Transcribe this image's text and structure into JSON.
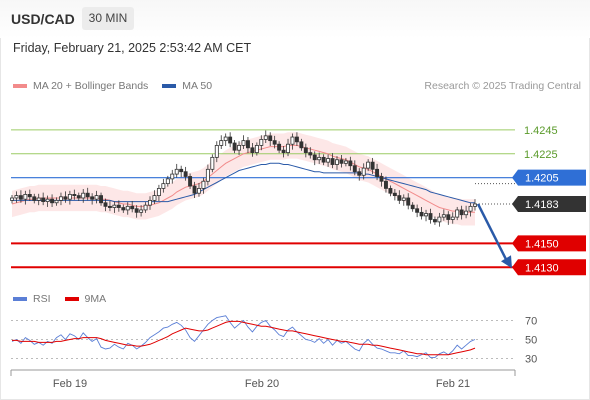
{
  "header": {
    "symbol": "USD/CAD",
    "timeframe": "30 MIN",
    "datetime": "Friday, February 21, 2025 2:53:42 AM CET"
  },
  "legend": {
    "ma20_label": "MA 20 + Bollinger Bands",
    "ma20_color": "#f28b8b",
    "ma50_label": "MA 50",
    "ma50_color": "#2a5aa8",
    "credit": "Research © 2025 Trading Central"
  },
  "rsi_legend": {
    "rsi_label": "RSI",
    "rsi_color": "#5b7fd6",
    "ma_label": "9MA",
    "ma_color": "#e00000"
  },
  "chart_data": {
    "type": "candlestick",
    "x_ticks": [
      "Feb 19",
      "Feb 20",
      "Feb 21"
    ],
    "ylim": [
      1.4111,
      1.427
    ],
    "levels": [
      {
        "value": 1.4245,
        "label": "1.4245",
        "style": "resistance",
        "color": "#9ccc65"
      },
      {
        "value": 1.4225,
        "label": "1.4225",
        "style": "resistance",
        "color": "#9ccc65"
      },
      {
        "value": 1.4205,
        "label": "1.4205",
        "style": "pivot",
        "color": "#2f6fd6"
      },
      {
        "value": 1.4183,
        "label": "1.4183",
        "style": "current",
        "color": "#333333"
      },
      {
        "value": 1.415,
        "label": "1.4150",
        "style": "support",
        "color": "#e00000"
      },
      {
        "value": 1.413,
        "label": "1.4130",
        "style": "support",
        "color": "#e00000"
      }
    ],
    "forecast_arrow": {
      "from": 1.4183,
      "to": 1.413,
      "color": "#2a5aa8"
    },
    "price": [
      1.4188,
      1.419,
      1.4187,
      1.4191,
      1.4189,
      1.4186,
      1.4188,
      1.4185,
      1.4187,
      1.4184,
      1.4186,
      1.4189,
      1.4187,
      1.4191,
      1.419,
      1.4188,
      1.4192,
      1.4189,
      1.4187,
      1.419,
      1.4184,
      1.4181,
      1.418,
      1.4182,
      1.418,
      1.4178,
      1.4181,
      1.4179,
      1.4176,
      1.4178,
      1.4182,
      1.4186,
      1.419,
      1.4196,
      1.42,
      1.4204,
      1.4208,
      1.4212,
      1.421,
      1.4206,
      1.4198,
      1.4192,
      1.4196,
      1.4202,
      1.4212,
      1.4222,
      1.4232,
      1.4236,
      1.4239,
      1.4234,
      1.4228,
      1.4232,
      1.4236,
      1.423,
      1.4226,
      1.4232,
      1.4237,
      1.424,
      1.4236,
      1.4233,
      1.4228,
      1.4226,
      1.4233,
      1.4239,
      1.4235,
      1.423,
      1.4226,
      1.4224,
      1.422,
      1.4222,
      1.4218,
      1.4221,
      1.4216,
      1.422,
      1.4217,
      1.4219,
      1.4215,
      1.421,
      1.4207,
      1.4213,
      1.4218,
      1.4212,
      1.4206,
      1.4202,
      1.4196,
      1.4192,
      1.419,
      1.4186,
      1.4188,
      1.4182,
      1.4179,
      1.4176,
      1.4173,
      1.4175,
      1.417,
      1.4168,
      1.4172,
      1.4174,
      1.417,
      1.4172,
      1.4178,
      1.4174,
      1.4177,
      1.4181,
      1.4183
    ],
    "ma20": [
      1.4183,
      1.4184,
      1.4185,
      1.4186,
      1.4187,
      1.4187,
      1.4188,
      1.4188,
      1.4188,
      1.4188,
      1.4188,
      1.4188,
      1.4188,
      1.4188,
      1.4188,
      1.4188,
      1.4188,
      1.4188,
      1.4188,
      1.4188,
      1.4187,
      1.4187,
      1.4186,
      1.4185,
      1.4184,
      1.4183,
      1.4183,
      1.4182,
      1.4181,
      1.4181,
      1.4181,
      1.4182,
      1.4183,
      1.4184,
      1.4186,
      1.4188,
      1.419,
      1.4193,
      1.4195,
      1.4197,
      1.4198,
      1.4199,
      1.42,
      1.4202,
      1.4205,
      1.4208,
      1.4211,
      1.4214,
      1.4217,
      1.4219,
      1.4221,
      1.4223,
      1.4225,
      1.4226,
      1.4227,
      1.4228,
      1.4229,
      1.423,
      1.4231,
      1.4231,
      1.4231,
      1.4231,
      1.4232,
      1.4232,
      1.4232,
      1.4231,
      1.423,
      1.4229,
      1.4228,
      1.4227,
      1.4226,
      1.4225,
      1.4223,
      1.4222,
      1.4221,
      1.422,
      1.4218,
      1.4216,
      1.4214,
      1.4213,
      1.4212,
      1.421,
      1.4208,
      1.4206,
      1.4204,
      1.4202,
      1.42,
      1.4198,
      1.4196,
      1.4194,
      1.4192,
      1.419,
      1.4188,
      1.4186,
      1.4184,
      1.4182,
      1.418,
      1.4179,
      1.4178,
      1.4177,
      1.4177,
      1.4176,
      1.4176,
      1.4176,
      1.4176
    ],
    "ma50": [
      1.4186,
      1.4186,
      1.4186,
      1.4186,
      1.4186,
      1.4186,
      1.4186,
      1.4186,
      1.4186,
      1.4186,
      1.4186,
      1.4186,
      1.4186,
      1.4186,
      1.4186,
      1.4186,
      1.4186,
      1.4186,
      1.4186,
      1.4186,
      1.4186,
      1.4186,
      1.4186,
      1.4185,
      1.4185,
      1.4185,
      1.4185,
      1.4185,
      1.4185,
      1.4185,
      1.4185,
      1.4185,
      1.4185,
      1.4185,
      1.4185,
      1.4185,
      1.4186,
      1.4187,
      1.4188,
      1.4189,
      1.419,
      1.4191,
      1.4193,
      1.4195,
      1.4197,
      1.4199,
      1.4201,
      1.4203,
      1.4205,
      1.4207,
      1.4209,
      1.4211,
      1.4212,
      1.4213,
      1.4214,
      1.4215,
      1.4216,
      1.4216,
      1.4217,
      1.4217,
      1.4217,
      1.4216,
      1.4216,
      1.4215,
      1.4214,
      1.4213,
      1.4212,
      1.4211,
      1.421,
      1.421,
      1.4209,
      1.4209,
      1.4209,
      1.4209,
      1.4209,
      1.4209,
      1.4209,
      1.4209,
      1.4209,
      1.4208,
      1.4208,
      1.4207,
      1.4206,
      1.4205,
      1.4204,
      1.4203,
      1.4202,
      1.4201,
      1.42,
      1.4199,
      1.4198,
      1.4197,
      1.4196,
      1.4195,
      1.4193,
      1.4192,
      1.4191,
      1.419,
      1.4189,
      1.4188,
      1.4187,
      1.4186,
      1.4185,
      1.4184,
      1.4184
    ],
    "bb_width": 0.0011,
    "rsi": {
      "ticks": [
        "70",
        "50",
        "30"
      ],
      "ylim": [
        20,
        80
      ],
      "rsi": [
        48,
        50,
        46,
        52,
        49,
        45,
        47,
        44,
        48,
        46,
        52,
        55,
        50,
        56,
        54,
        50,
        57,
        52,
        48,
        51,
        42,
        40,
        41,
        45,
        42,
        40,
        46,
        44,
        40,
        43,
        47,
        52,
        55,
        58,
        62,
        63,
        66,
        68,
        65,
        60,
        52,
        48,
        54,
        60,
        66,
        70,
        73,
        74,
        75,
        68,
        62,
        66,
        70,
        63,
        58,
        64,
        68,
        70,
        64,
        60,
        55,
        53,
        60,
        63,
        58,
        54,
        50,
        49,
        47,
        51,
        46,
        50,
        44,
        49,
        46,
        48,
        44,
        40,
        38,
        46,
        50,
        45,
        41,
        40,
        38,
        36,
        36,
        35,
        38,
        33,
        33,
        32,
        34,
        36,
        31,
        31,
        35,
        37,
        34,
        38,
        44,
        40,
        44,
        48,
        50
      ],
      "ma9": [
        49,
        49,
        48,
        48,
        48,
        48,
        47,
        47,
        47,
        47,
        48,
        48,
        49,
        50,
        51,
        51,
        52,
        52,
        52,
        52,
        51,
        49,
        48,
        47,
        46,
        45,
        44,
        44,
        43,
        43,
        44,
        45,
        47,
        49,
        51,
        53,
        56,
        58,
        60,
        62,
        61,
        60,
        59,
        59,
        60,
        62,
        64,
        66,
        68,
        69,
        69,
        69,
        68,
        67,
        66,
        65,
        64,
        64,
        63,
        62,
        61,
        60,
        59,
        59,
        58,
        57,
        56,
        55,
        54,
        53,
        52,
        51,
        50,
        49,
        48,
        48,
        47,
        46,
        45,
        45,
        45,
        44,
        44,
        43,
        42,
        41,
        40,
        39,
        38,
        37,
        36,
        35,
        35,
        34,
        34,
        34,
        34,
        34,
        34,
        35,
        36,
        37,
        38,
        39,
        41
      ]
    }
  }
}
